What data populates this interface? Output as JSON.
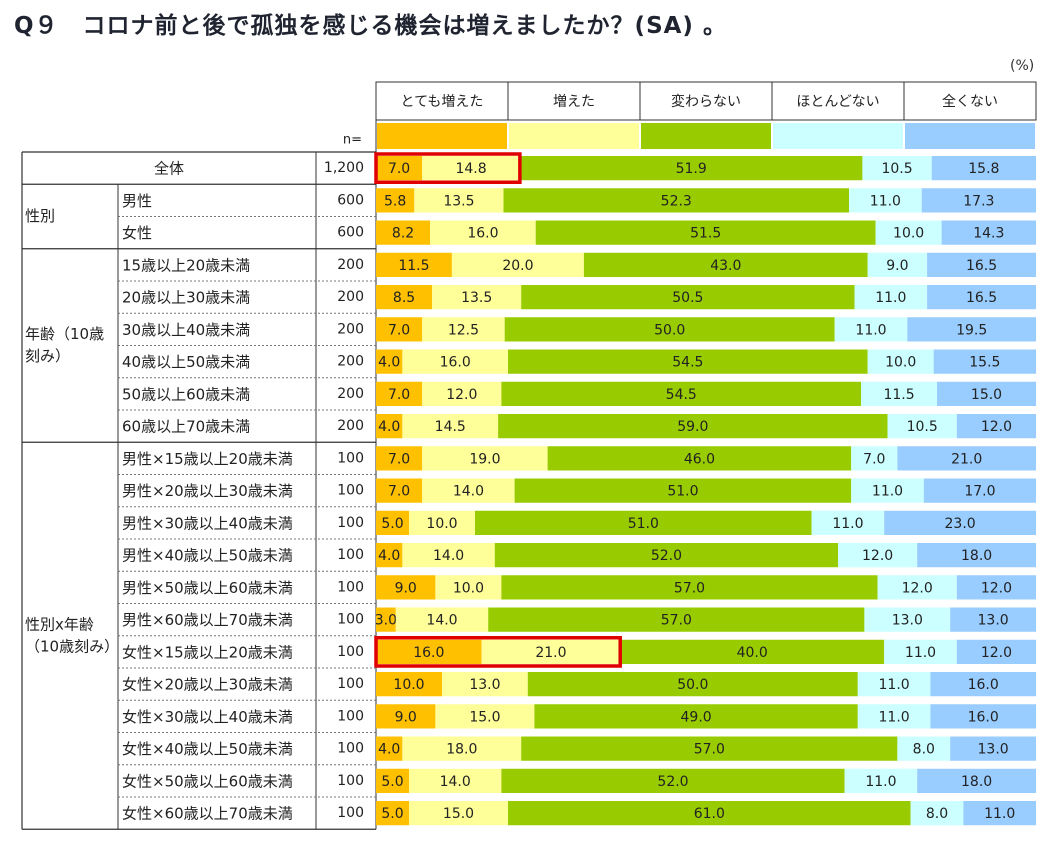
{
  "title": "Q９　コロナ前と後で孤独を感じる機会は増えましたか？(SA) 。",
  "unit": "(%)",
  "n_label": "n=",
  "colors": {
    "とても増えた": "#FFC000",
    "増えた": "#FFFF99",
    "変わらない": "#99CC00",
    "ほとんどない": "#CCFFFF",
    "全くない": "#99CCFF",
    "highlight": "#E00000"
  },
  "chart_data": {
    "type": "bar",
    "orientation": "horizontal",
    "stacked": true,
    "percent": true,
    "legend_position": "top",
    "series_names": [
      "とても増えた",
      "増えた",
      "変わらない",
      "ほとんどない",
      "全くない"
    ],
    "groups": [
      {
        "label": "",
        "rows": [
          {
            "label": "全体",
            "n": "1,200",
            "values": [
              7.0,
              14.8,
              51.9,
              10.5,
              15.8
            ],
            "highlight": true
          }
        ]
      },
      {
        "label": "性別",
        "rows": [
          {
            "label": "男性",
            "n": "600",
            "values": [
              5.8,
              13.5,
              52.3,
              11.0,
              17.3
            ]
          },
          {
            "label": "女性",
            "n": "600",
            "values": [
              8.2,
              16.0,
              51.5,
              10.0,
              14.3
            ]
          }
        ]
      },
      {
        "label": "年齢（10歳\n刻み）",
        "rows": [
          {
            "label": "15歳以上20歳未満",
            "n": "200",
            "values": [
              11.5,
              20.0,
              43.0,
              9.0,
              16.5
            ]
          },
          {
            "label": "20歳以上30歳未満",
            "n": "200",
            "values": [
              8.5,
              13.5,
              50.5,
              11.0,
              16.5
            ]
          },
          {
            "label": "30歳以上40歳未満",
            "n": "200",
            "values": [
              7.0,
              12.5,
              50.0,
              11.0,
              19.5
            ]
          },
          {
            "label": "40歳以上50歳未満",
            "n": "200",
            "values": [
              4.0,
              16.0,
              54.5,
              10.0,
              15.5
            ]
          },
          {
            "label": "50歳以上60歳未満",
            "n": "200",
            "values": [
              7.0,
              12.0,
              54.5,
              11.5,
              15.0
            ]
          },
          {
            "label": "60歳以上70歳未満",
            "n": "200",
            "values": [
              4.0,
              14.5,
              59.0,
              10.5,
              12.0
            ]
          }
        ]
      },
      {
        "label": "性別x年齢\n（10歳刻み）",
        "rows": [
          {
            "label": "男性×15歳以上20歳未満",
            "n": "100",
            "values": [
              7.0,
              19.0,
              46.0,
              7.0,
              21.0
            ]
          },
          {
            "label": "男性×20歳以上30歳未満",
            "n": "100",
            "values": [
              7.0,
              14.0,
              51.0,
              11.0,
              17.0
            ]
          },
          {
            "label": "男性×30歳以上40歳未満",
            "n": "100",
            "values": [
              5.0,
              10.0,
              51.0,
              11.0,
              23.0
            ]
          },
          {
            "label": "男性×40歳以上50歳未満",
            "n": "100",
            "values": [
              4.0,
              14.0,
              52.0,
              12.0,
              18.0
            ]
          },
          {
            "label": "男性×50歳以上60歳未満",
            "n": "100",
            "values": [
              9.0,
              10.0,
              57.0,
              12.0,
              12.0
            ]
          },
          {
            "label": "男性×60歳以上70歳未満",
            "n": "100",
            "values": [
              3.0,
              14.0,
              57.0,
              13.0,
              13.0
            ]
          },
          {
            "label": "女性×15歳以上20歳未満",
            "n": "100",
            "values": [
              16.0,
              21.0,
              40.0,
              11.0,
              12.0
            ],
            "highlight": true
          },
          {
            "label": "女性×20歳以上30歳未満",
            "n": "100",
            "values": [
              10.0,
              13.0,
              50.0,
              11.0,
              16.0
            ]
          },
          {
            "label": "女性×30歳以上40歳未満",
            "n": "100",
            "values": [
              9.0,
              15.0,
              49.0,
              11.0,
              16.0
            ]
          },
          {
            "label": "女性×40歳以上50歳未満",
            "n": "100",
            "values": [
              4.0,
              18.0,
              57.0,
              8.0,
              13.0
            ]
          },
          {
            "label": "女性×50歳以上60歳未満",
            "n": "100",
            "values": [
              5.0,
              14.0,
              52.0,
              11.0,
              18.0
            ]
          },
          {
            "label": "女性×60歳以上70歳未満",
            "n": "100",
            "values": [
              5.0,
              15.0,
              61.0,
              8.0,
              11.0
            ]
          }
        ]
      }
    ]
  }
}
